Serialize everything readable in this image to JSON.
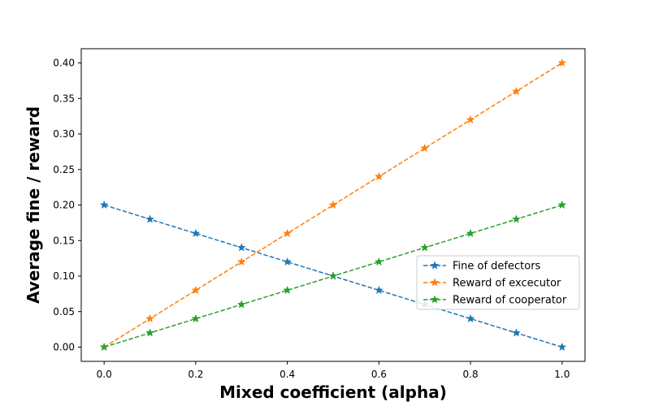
{
  "chart_data": {
    "type": "line",
    "title": "",
    "xlabel": "Mixed coefficient (alpha)",
    "ylabel": "Average fine / reward",
    "xlim": [
      -0.05,
      1.05
    ],
    "ylim": [
      -0.02,
      0.42
    ],
    "x": [
      0.0,
      0.1,
      0.2,
      0.3,
      0.4,
      0.5,
      0.6,
      0.7,
      0.8,
      0.9,
      1.0
    ],
    "xticks": [
      0.0,
      0.2,
      0.4,
      0.6,
      0.8,
      1.0
    ],
    "xtick_labels": [
      "0.0",
      "0.2",
      "0.4",
      "0.6",
      "0.8",
      "1.0"
    ],
    "yticks": [
      0.0,
      0.05,
      0.1,
      0.15,
      0.2,
      0.25,
      0.3,
      0.35,
      0.4
    ],
    "ytick_labels": [
      "0.00",
      "0.05",
      "0.10",
      "0.15",
      "0.20",
      "0.25",
      "0.30",
      "0.35",
      "0.40"
    ],
    "grid": false,
    "legend_position": "center-right",
    "line_style": "dashed",
    "marker": "star",
    "series": [
      {
        "name": "Fine of defectors",
        "color": "#1f77b4",
        "values": [
          0.2,
          0.18,
          0.16,
          0.14,
          0.12,
          0.1,
          0.08,
          0.06,
          0.04,
          0.02,
          0.0
        ]
      },
      {
        "name": "Reward of excecutor",
        "color": "#ff7f0e",
        "values": [
          0.0,
          0.04,
          0.08,
          0.12,
          0.16,
          0.2,
          0.24,
          0.28,
          0.32,
          0.36,
          0.4
        ]
      },
      {
        "name": "Reward of cooperator",
        "color": "#2ca02c",
        "values": [
          0.0,
          0.02,
          0.04,
          0.06,
          0.08,
          0.1,
          0.12,
          0.14,
          0.16,
          0.18,
          0.2
        ]
      }
    ]
  }
}
